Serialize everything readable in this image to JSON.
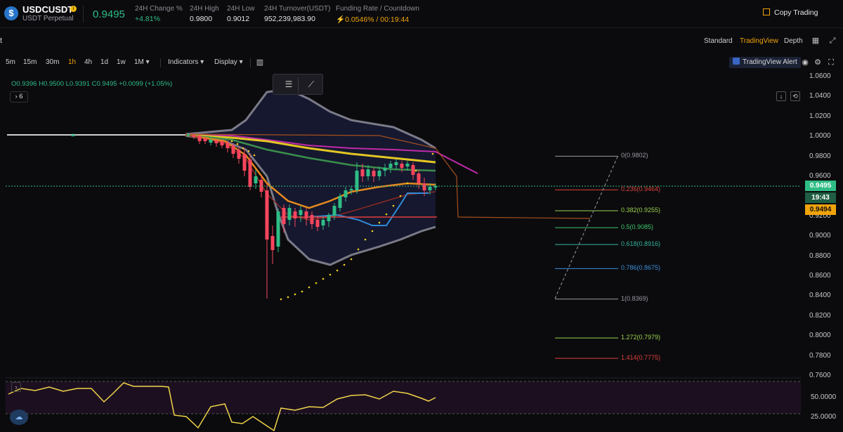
{
  "header": {
    "symbol": "USDCUSDT",
    "subtitle": "USDT Perpetual",
    "logo_glyph": "$",
    "price": "0.9495",
    "stats": [
      {
        "label": "24H Change %",
        "value": "+4.81%",
        "tone": "green"
      },
      {
        "label": "24H High",
        "value": "0.9800",
        "tone": ""
      },
      {
        "label": "24H Low",
        "value": "0.9012",
        "tone": ""
      },
      {
        "label": "24H Turnover(USDT)",
        "value": "952,239,983.90",
        "tone": ""
      },
      {
        "label": "Funding Rate / Countdown",
        "value": "⚡0.0546% / 00:19:44",
        "tone": "orange"
      }
    ],
    "copy_trading": "Copy Trading"
  },
  "view": {
    "lead": "t",
    "tabs": [
      "Standard",
      "TradingView",
      "Depth"
    ],
    "active_tab": "TradingView"
  },
  "toolbar": {
    "timeframes": [
      "5m",
      "15m",
      "30m",
      "1h",
      "4h",
      "1d",
      "1w",
      "1M ▾"
    ],
    "active_timeframe": "1h",
    "indicators": "Indicators ▾",
    "display": "Display ▾",
    "alert": "TradingView Alert"
  },
  "chart": {
    "ohlc": "O0.9396  H0.9500  L0.9391  C0.9495  +0.0099 (+1.05%)",
    "indicator_count": "6",
    "price_axis": [
      "1.0600",
      "1.0400",
      "1.0200",
      "1.0000",
      "0.9800",
      "0.9600",
      "0.9400",
      "0.9200",
      "0.9000",
      "0.8800",
      "0.8600",
      "0.8400",
      "0.8200",
      "0.8000",
      "0.7800",
      "0.7600"
    ],
    "last_price": "0.9495",
    "countdown": "19:43",
    "mark_price": "0.9494",
    "fib_levels": [
      {
        "label": "0(0.9802)",
        "price": 0.9802,
        "color": "#9a9aa2"
      },
      {
        "label": "0.236(0.9464)",
        "price": 0.9464,
        "color": "#e0413b"
      },
      {
        "label": "0.382(0.9255)",
        "price": 0.9255,
        "color": "#9bd34a"
      },
      {
        "label": "0.5(0.9085)",
        "price": 0.9085,
        "color": "#3ec46a"
      },
      {
        "label": "0.618(0.8916)",
        "price": 0.8916,
        "color": "#35b59a"
      },
      {
        "label": "0.786(0.8675)",
        "price": 0.8675,
        "color": "#3b8fd6"
      },
      {
        "label": "1(0.8369)",
        "price": 0.8369,
        "color": "#9a9aa2"
      },
      {
        "label": "1.272(0.7979)",
        "price": 0.7979,
        "color": "#9bd34a"
      },
      {
        "label": "1.414(0.7775)",
        "price": 0.7775,
        "color": "#e0413b"
      }
    ],
    "rsi_axis": [
      "50.0000",
      "25.0000"
    ],
    "colors": {
      "up": "#2ebd85",
      "down": "#f6465d",
      "accent": "#f0a30a"
    }
  }
}
